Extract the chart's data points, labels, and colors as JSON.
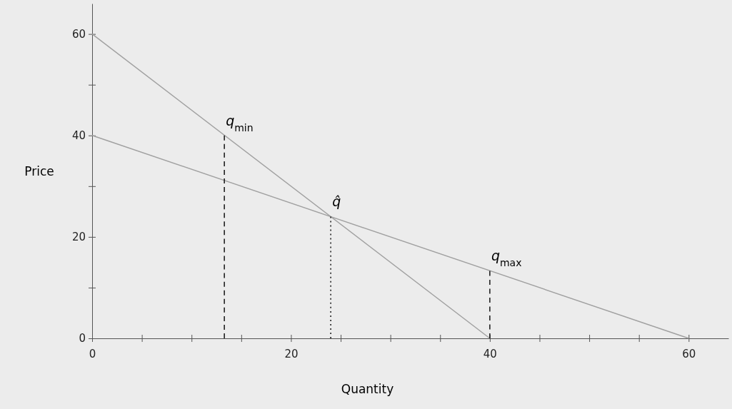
{
  "chart_data": {
    "type": "line",
    "xlabel": "Quantity",
    "ylabel": "Price",
    "xlim": [
      0,
      64
    ],
    "ylim": [
      0,
      66
    ],
    "xticks": [
      0,
      {
        "value": 5,
        "label": null
      },
      {
        "value": 10,
        "label": null
      },
      {
        "value": 15,
        "label": null
      },
      20,
      {
        "value": 25,
        "label": null
      },
      {
        "value": 30,
        "label": null
      },
      {
        "value": 35,
        "label": null
      },
      40,
      {
        "value": 45,
        "label": null
      },
      {
        "value": 50,
        "label": null
      },
      {
        "value": 55,
        "label": null
      },
      60
    ],
    "yticks": [
      0,
      {
        "value": 10,
        "label": null
      },
      20,
      {
        "value": 30,
        "label": null
      },
      40,
      {
        "value": 50,
        "label": null
      },
      60
    ],
    "grid": false,
    "marker": "none",
    "series": [
      {
        "color": "#a0a0a0",
        "x": [
          0,
          40
        ],
        "values": [
          60,
          0
        ],
        "line_style": "solid"
      },
      {
        "color": "#a0a0a0",
        "x": [
          0,
          60
        ],
        "values": [
          40,
          0
        ],
        "line_style": "solid"
      },
      {
        "color": "#222222",
        "x": [
          13.3,
          13.3
        ],
        "values": [
          0,
          40
        ],
        "line_style": "dashed"
      },
      {
        "color": "#222222",
        "x": [
          24,
          24
        ],
        "values": [
          0,
          24
        ],
        "line_style": "dotted"
      },
      {
        "color": "#222222",
        "x": [
          40,
          40
        ],
        "values": [
          0,
          13.3
        ],
        "line_style": "dashed"
      }
    ],
    "annotations": [
      {
        "text": "q$_{min}$",
        "x": 13.3,
        "y": 40
      },
      {
        "text": "q̂",
        "x": 24,
        "y": 24
      },
      {
        "text": "q$_{max}$",
        "x": 40,
        "y": 13.3
      }
    ]
  }
}
